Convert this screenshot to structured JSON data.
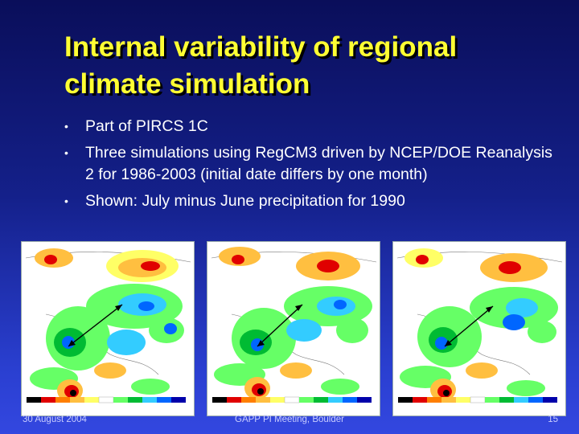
{
  "slide": {
    "title_line1": "Internal variability of regional",
    "title_line2": "climate simulation",
    "bullets": [
      "Part of PIRCS 1C",
      "Three simulations using RegCM3 driven by NCEP/DOE Reanalysis 2 for 1986-2003 (initial date differs by one month)",
      "Shown: July minus June precipitation for 1990"
    ],
    "bullet_marker": "•"
  },
  "maps": [
    {
      "name": "simulation-1-map",
      "arrow": "bidirectional-arrow"
    },
    {
      "name": "simulation-2-map",
      "arrow": "bidirectional-arrow"
    },
    {
      "name": "simulation-3-map",
      "arrow": "bidirectional-arrow"
    }
  ],
  "colorbar_colors": [
    "#000000",
    "#e00000",
    "#ff7f00",
    "#ffbf40",
    "#ffff66",
    "#ffffff",
    "#66ff66",
    "#00bb33",
    "#33ccff",
    "#0066ff",
    "#0000aa"
  ],
  "footer": {
    "date": "30 August 2004",
    "meeting": "GAPP PI Meeting, Boulder",
    "page": "15"
  }
}
